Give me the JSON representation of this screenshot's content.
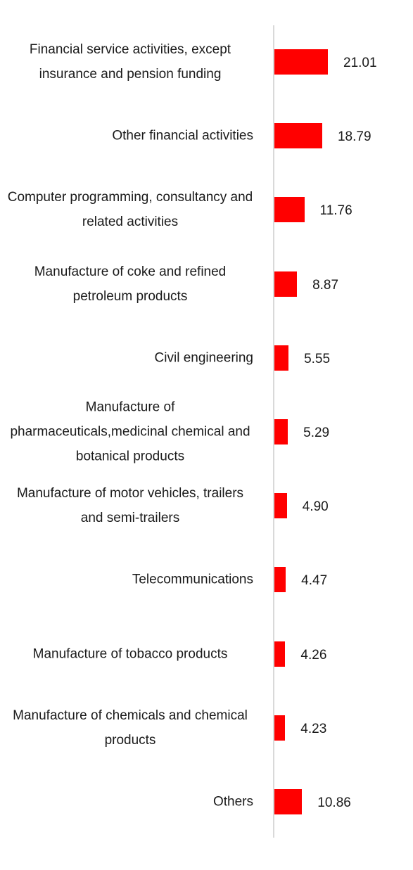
{
  "chart_data": {
    "type": "bar",
    "orientation": "horizontal",
    "categories": [
      "Financial service activities, except insurance and pension funding",
      "Other financial activities",
      "Computer programming, consultancy and related activities",
      "Manufacture of coke and refined petroleum products",
      "Civil engineering",
      "Manufacture of pharmaceuticals,medicinal chemical and botanical products",
      "Manufacture of motor vehicles, trailers and semi-trailers",
      "Telecommunications",
      "Manufacture of tobacco products",
      "Manufacture of chemicals and chemical products",
      "Others"
    ],
    "values": [
      21.01,
      18.79,
      11.76,
      8.87,
      5.55,
      5.29,
      4.9,
      4.47,
      4.26,
      4.23,
      10.86
    ],
    "value_labels": [
      "21.01",
      "18.79",
      "11.76",
      "8.87",
      "5.55",
      "5.29",
      "4.90",
      "4.47",
      "4.26",
      "4.23",
      "10.86"
    ],
    "title": "",
    "xlabel": "",
    "ylabel": "",
    "xlim": [
      0,
      21.01
    ],
    "grid": false,
    "legend": "none",
    "bar_color": "#ff0000",
    "axis_color": "#d9d9d9"
  }
}
